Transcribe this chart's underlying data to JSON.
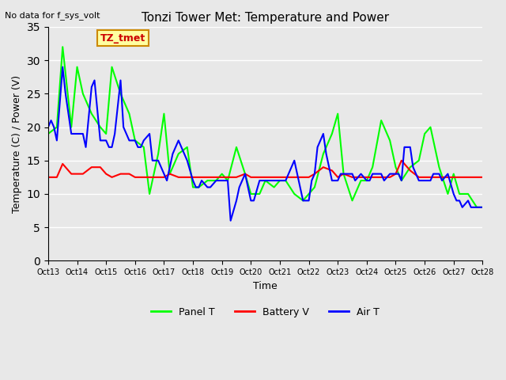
{
  "title": "Tonzi Tower Met: Temperature and Power",
  "top_left_text": "No data for f_sys_volt",
  "ylabel": "Temperature (C) / Power (V)",
  "xlabel": "Time",
  "ylim": [
    0,
    35
  ],
  "yticks": [
    0,
    5,
    10,
    15,
    20,
    25,
    30,
    35
  ],
  "xtick_labels": [
    "Oct 13",
    "Oct 14",
    "Oct 15",
    "Oct 16",
    "Oct 17",
    "Oct 18",
    "Oct 19",
    "Oct 20",
    "Oct 21",
    "Oct 22",
    "Oct 23",
    "Oct 24",
    "Oct 25",
    "Oct 26",
    "Oct 27",
    "Oct 28"
  ],
  "annotation_box_text": "TZ_tmet",
  "annotation_box_color": "#FFFFA0",
  "annotation_box_edge_color": "#CC8800",
  "annotation_text_color": "#CC0000",
  "background_color": "#E8E8E8",
  "plot_bg_color": "#E8E8E8",
  "grid_color": "#FFFFFF",
  "panel_t_color": "#00FF00",
  "battery_v_color": "#FF0000",
  "air_t_color": "#0000FF",
  "legend_entries": [
    "Panel T",
    "Battery V",
    "Air T"
  ],
  "panel_t_x": [
    0,
    0.3,
    0.5,
    0.8,
    1.0,
    1.2,
    1.5,
    1.8,
    2.0,
    2.2,
    2.5,
    2.8,
    3.0,
    3.3,
    3.5,
    3.8,
    4.0,
    4.2,
    4.5,
    4.8,
    5.0,
    5.2,
    5.5,
    5.8,
    6.0,
    6.2,
    6.5,
    6.8,
    7.0,
    7.3,
    7.5,
    7.8,
    8.0,
    8.2,
    8.5,
    8.8,
    9.0,
    9.2,
    9.5,
    9.8,
    10.0,
    10.2,
    10.5,
    10.8,
    11.0,
    11.2,
    11.5,
    11.8,
    12.0,
    12.2,
    12.5,
    12.8,
    13.0,
    13.2,
    13.5,
    13.8,
    14.0,
    14.2,
    14.5,
    14.8,
    15.0
  ],
  "panel_t_y": [
    19,
    20,
    32,
    20,
    29,
    25,
    22,
    20,
    19,
    29,
    25,
    22,
    18,
    17,
    10,
    16,
    22,
    13,
    16,
    17,
    11,
    11,
    12,
    12,
    13,
    12,
    17,
    13,
    10,
    10,
    12,
    11,
    12,
    12,
    10,
    9,
    10,
    11,
    16,
    19,
    22,
    13,
    9,
    12,
    12,
    14,
    21,
    18,
    14,
    12,
    14,
    15,
    19,
    20,
    14,
    10,
    13,
    10,
    10,
    8,
    8
  ],
  "battery_v_x": [
    0,
    0.3,
    0.5,
    0.8,
    1.0,
    1.2,
    1.5,
    1.8,
    2.0,
    2.2,
    2.5,
    2.8,
    3.0,
    3.3,
    3.5,
    3.8,
    4.0,
    4.2,
    4.5,
    4.8,
    5.0,
    5.2,
    5.5,
    5.8,
    6.0,
    6.2,
    6.5,
    6.8,
    7.0,
    7.3,
    7.5,
    7.8,
    8.0,
    8.2,
    8.5,
    8.8,
    9.0,
    9.2,
    9.5,
    9.8,
    10.0,
    10.2,
    10.5,
    10.8,
    11.0,
    11.2,
    11.5,
    11.8,
    12.0,
    12.2,
    12.5,
    12.8,
    13.0,
    13.2,
    13.5,
    13.8,
    14.0,
    14.2,
    14.5,
    14.8,
    15.0
  ],
  "battery_v_y": [
    12.5,
    12.5,
    14.5,
    13,
    13,
    13,
    14,
    14,
    13,
    12.5,
    13,
    13,
    12.5,
    12.5,
    12.5,
    12.5,
    12.5,
    13,
    12.5,
    12.5,
    12.5,
    12.5,
    12.5,
    12.5,
    12.5,
    12.5,
    12.5,
    13,
    12.5,
    12.5,
    12.5,
    12.5,
    12.5,
    12.5,
    12.5,
    12.5,
    12.5,
    13,
    14,
    13.5,
    12.5,
    13,
    12.5,
    12.5,
    12.5,
    12.5,
    12.5,
    12.5,
    13,
    15,
    13.5,
    12.5,
    12.5,
    12.5,
    12.5,
    12.5,
    12.5,
    12.5,
    12.5,
    12.5,
    12.5
  ],
  "air_t_x": [
    0,
    0.1,
    0.2,
    0.3,
    0.5,
    0.6,
    0.8,
    1.0,
    1.1,
    1.2,
    1.3,
    1.5,
    1.6,
    1.8,
    2.0,
    2.1,
    2.2,
    2.3,
    2.5,
    2.6,
    2.8,
    3.0,
    3.1,
    3.2,
    3.3,
    3.5,
    3.6,
    3.8,
    4.0,
    4.1,
    4.2,
    4.3,
    4.5,
    4.6,
    4.8,
    5.0,
    5.1,
    5.2,
    5.3,
    5.5,
    5.6,
    5.8,
    6.0,
    6.1,
    6.2,
    6.3,
    6.5,
    6.6,
    6.8,
    7.0,
    7.1,
    7.3,
    7.5,
    7.6,
    7.8,
    8.0,
    8.1,
    8.2,
    8.3,
    8.5,
    8.6,
    8.8,
    9.0,
    9.1,
    9.2,
    9.3,
    9.5,
    9.6,
    9.8,
    10.0,
    10.1,
    10.2,
    10.3,
    10.5,
    10.6,
    10.8,
    11.0,
    11.1,
    11.2,
    11.3,
    11.5,
    11.6,
    11.8,
    12.0,
    12.1,
    12.2,
    12.3,
    12.5,
    12.6,
    12.8,
    13.0,
    13.1,
    13.2,
    13.3,
    13.5,
    13.6,
    13.8,
    14.0,
    14.1,
    14.2,
    14.3,
    14.5,
    14.6,
    14.8,
    15.0
  ],
  "air_t_y": [
    20,
    21,
    20,
    18,
    29,
    25,
    19,
    19,
    19,
    19,
    17,
    26,
    27,
    18,
    18,
    17,
    17,
    19,
    27,
    20,
    18,
    18,
    17,
    17,
    18,
    19,
    15,
    15,
    13,
    12,
    14,
    16,
    18,
    17,
    15,
    12,
    11,
    11,
    12,
    11,
    11,
    12,
    12,
    12,
    12,
    6,
    9,
    11,
    13,
    9,
    9,
    12,
    12,
    12,
    12,
    12,
    12,
    12,
    13,
    15,
    13,
    9,
    9,
    12,
    13,
    17,
    19,
    16,
    12,
    12,
    13,
    13,
    13,
    13,
    12,
    13,
    12,
    12,
    13,
    13,
    13,
    12,
    13,
    13,
    13,
    12,
    17,
    17,
    14,
    12,
    12,
    12,
    12,
    13,
    13,
    12,
    13,
    10,
    9,
    9,
    8,
    9,
    8,
    8,
    8
  ]
}
